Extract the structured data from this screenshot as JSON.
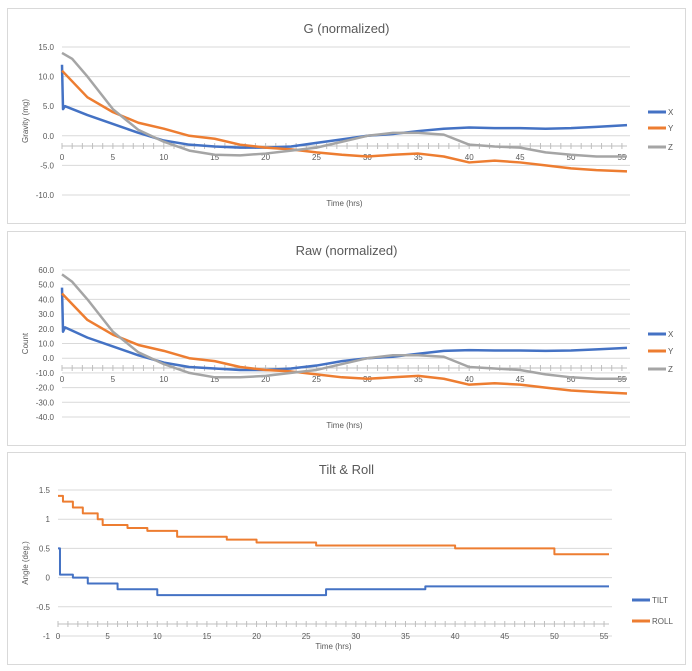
{
  "colors": {
    "x": "#4472c4",
    "y": "#ed7d31",
    "z": "#a5a5a5",
    "tilt": "#4472c4",
    "roll": "#ed7d31",
    "grid": "#d9d9d9"
  },
  "chart_data": [
    {
      "type": "line",
      "title": "G (normalized)",
      "xlabel": "Time (hrs)",
      "ylabel": "Gravity (mg)",
      "xlim": [
        0,
        55.5
      ],
      "ylim": [
        -10,
        15
      ],
      "grid": true,
      "legend": "right",
      "x_ticks": [
        "0",
        "5",
        "10",
        "15",
        "20",
        "25",
        "30",
        "35",
        "40",
        "45",
        "50",
        "55"
      ],
      "y_ticks": [
        "15.0",
        "10.0",
        "5.0",
        "0.0",
        "-5.0",
        "-10.0"
      ],
      "series": [
        {
          "name": "X",
          "x": [
            0,
            0.1,
            0.3,
            2.5,
            5,
            7.5,
            10,
            12.5,
            15,
            17.5,
            20,
            22.5,
            25,
            27.5,
            30,
            32.5,
            35,
            37.5,
            40,
            42.5,
            45,
            47.5,
            50,
            52.5,
            55.5
          ],
          "y": [
            12,
            4.5,
            5.0,
            3.5,
            2.0,
            0.5,
            -0.8,
            -1.5,
            -1.8,
            -2.0,
            -2.0,
            -1.8,
            -1.2,
            -0.6,
            0,
            0.3,
            0.8,
            1.2,
            1.4,
            1.3,
            1.3,
            1.2,
            1.3,
            1.5,
            1.8
          ]
        },
        {
          "name": "Y",
          "x": [
            0,
            2.5,
            5,
            7.5,
            10,
            12.5,
            15,
            17.5,
            20,
            22.5,
            25,
            27.5,
            30,
            32.5,
            35,
            37.5,
            40,
            42.5,
            45,
            47.5,
            50,
            52.5,
            55.5
          ],
          "y": [
            11,
            6.5,
            4.0,
            2.2,
            1.2,
            0,
            -0.5,
            -1.5,
            -2.0,
            -2.3,
            -2.8,
            -3.2,
            -3.5,
            -3.2,
            -3.0,
            -3.5,
            -4.5,
            -4.2,
            -4.5,
            -5.0,
            -5.5,
            -5.8,
            -6.0
          ]
        },
        {
          "name": "Z",
          "x": [
            0,
            1,
            2.5,
            5,
            7.5,
            10,
            12.5,
            15,
            17.5,
            20,
            22.5,
            25,
            27.5,
            30,
            32.5,
            35,
            37.5,
            40,
            42.5,
            45,
            47.5,
            50,
            52.5,
            55.5
          ],
          "y": [
            14,
            13,
            10,
            4.5,
            1.0,
            -1.0,
            -2.5,
            -3.2,
            -3.3,
            -3.0,
            -2.5,
            -2.0,
            -1.0,
            0,
            0.5,
            0.5,
            0.2,
            -1.5,
            -1.8,
            -2.0,
            -2.8,
            -3.2,
            -3.5,
            -3.5
          ]
        }
      ]
    },
    {
      "type": "line",
      "title": "Raw (normalized)",
      "xlabel": "Time (hrs)",
      "ylabel": "Count",
      "xlim": [
        0,
        55.5
      ],
      "ylim": [
        -40,
        60
      ],
      "grid": true,
      "legend": "right",
      "x_ticks": [
        "0",
        "5",
        "10",
        "15",
        "20",
        "25",
        "30",
        "35",
        "40",
        "45",
        "50",
        "55"
      ],
      "y_ticks": [
        "60.0",
        "50.0",
        "40.0",
        "30.0",
        "20.0",
        "10.0",
        "0.0",
        "-10.0",
        "-20.0",
        "-30.0",
        "-40.0"
      ],
      "series": [
        {
          "name": "X",
          "x": [
            0,
            0.1,
            0.3,
            2.5,
            5,
            7.5,
            10,
            12.5,
            15,
            17.5,
            20,
            22.5,
            25,
            27.5,
            30,
            32.5,
            35,
            37.5,
            40,
            42.5,
            45,
            47.5,
            50,
            52.5,
            55.5
          ],
          "y": [
            48,
            18,
            21,
            14,
            8,
            2,
            -3,
            -6,
            -7,
            -8,
            -8,
            -7,
            -5,
            -2,
            0,
            1,
            3,
            5,
            5.5,
            5.2,
            5.2,
            5,
            5.2,
            6,
            7
          ]
        },
        {
          "name": "Y",
          "x": [
            0,
            2.5,
            5,
            7.5,
            10,
            12.5,
            15,
            17.5,
            20,
            22.5,
            25,
            27.5,
            30,
            32.5,
            35,
            37.5,
            40,
            42.5,
            45,
            47.5,
            50,
            52.5,
            55.5
          ],
          "y": [
            44,
            26,
            16,
            9,
            5,
            0,
            -2,
            -6,
            -8,
            -9,
            -11,
            -13,
            -14,
            -13,
            -12,
            -14,
            -18,
            -17,
            -18,
            -20,
            -22,
            -23,
            -24
          ]
        },
        {
          "name": "Z",
          "x": [
            0,
            1,
            2.5,
            5,
            7.5,
            10,
            12.5,
            15,
            17.5,
            20,
            22.5,
            25,
            27.5,
            30,
            32.5,
            35,
            37.5,
            40,
            42.5,
            45,
            47.5,
            50,
            52.5,
            55.5
          ],
          "y": [
            57,
            52,
            40,
            18,
            4,
            -4,
            -10,
            -13,
            -13,
            -12,
            -10,
            -8,
            -4,
            0,
            2,
            2,
            1,
            -6,
            -7,
            -8,
            -11,
            -13,
            -14,
            -14
          ]
        }
      ]
    },
    {
      "type": "line",
      "title": "Tilt & Roll",
      "xlabel": "Time (hrs)",
      "ylabel": "Angle (deg.)",
      "xlim": [
        0,
        55.5
      ],
      "ylim": [
        -1,
        1.5
      ],
      "grid": true,
      "legend": "right",
      "step": true,
      "x_ticks": [
        "0",
        "5",
        "10",
        "15",
        "20",
        "25",
        "30",
        "35",
        "40",
        "45",
        "50",
        "55"
      ],
      "y_ticks": [
        "1.5",
        "1",
        "0.5",
        "0",
        "-0.5",
        "-1"
      ],
      "series": [
        {
          "name": "TILT",
          "x": [
            0,
            0.2,
            1.5,
            3,
            6,
            10,
            27,
            37,
            55.5
          ],
          "y": [
            0.5,
            0.05,
            0,
            -0.1,
            -0.2,
            -0.3,
            -0.2,
            -0.15,
            -0.15
          ]
        },
        {
          "name": "ROLL",
          "x": [
            0,
            0.5,
            1.5,
            2.5,
            4,
            4.5,
            7,
            9,
            12,
            17,
            20,
            26,
            40,
            50,
            55.5
          ],
          "y": [
            1.4,
            1.3,
            1.2,
            1.1,
            1.0,
            0.9,
            0.85,
            0.8,
            0.7,
            0.65,
            0.6,
            0.55,
            0.5,
            0.4,
            0.4
          ]
        }
      ]
    }
  ]
}
